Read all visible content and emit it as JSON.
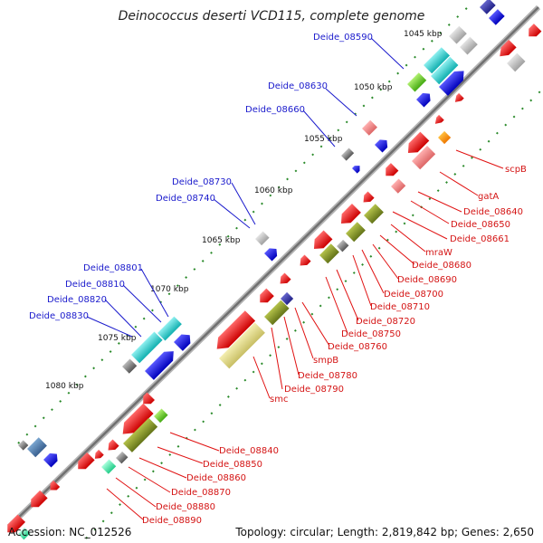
{
  "title": "Deinococcus deserti VCD115, complete genome",
  "kbp_labels": [
    "1045 kbp",
    "1050 kbp",
    "1055 kbp",
    "1060 kbp",
    "1065 kbp",
    "1070 kbp",
    "1075 kbp",
    "1080 kbp"
  ],
  "gene_labels_blue": [
    "Deide_08590",
    "Deide_08630",
    "Deide_08660",
    "Deide_08730",
    "Deide_08740",
    "Deide_08801",
    "Deide_08810",
    "Deide_08820",
    "Deide_08830"
  ],
  "gene_labels_red": [
    "scpB",
    "gatA",
    "Deide_08640",
    "Deide_08650",
    "Deide_08661",
    "mraW",
    "Deide_08680",
    "Deide_08690",
    "Deide_08700",
    "Deide_08710",
    "Deide_08720",
    "Deide_08750",
    "Deide_08760",
    "smpB",
    "Deide_08780",
    "Deide_08790",
    "smc",
    "Deide_08840",
    "Deide_08850",
    "Deide_08860",
    "Deide_08870",
    "Deide_08880",
    "Deide_08890"
  ],
  "footer": {
    "accession": "Accession: NC_012526",
    "summary": "Topology: circular; Length: 2,819,842 bp; Genes: 2,650"
  },
  "colors": {
    "backbone": "#8a8a8a",
    "label_blue": "#1a1acc",
    "label_red": "#d41414",
    "gene_red": "#ee1111",
    "gene_blue": "#1111dd",
    "gene_cyan": "#22cccc",
    "gene_olive": "#8a9a2a",
    "gene_khaki": "#d8d080",
    "gene_pink": "#ee8888",
    "gene_gray": "#888888",
    "gene_green": "#66cc22",
    "gene_orange": "#ff9900"
  }
}
